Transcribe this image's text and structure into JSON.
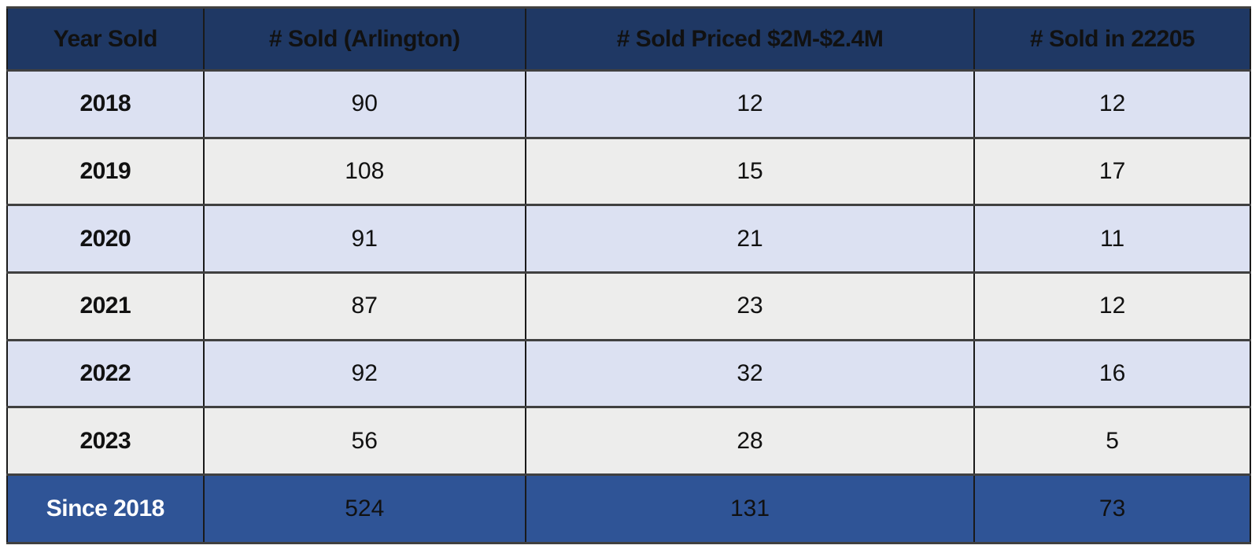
{
  "table": {
    "columns": [
      {
        "label": "Year Sold"
      },
      {
        "label": "# Sold (Arlington)"
      },
      {
        "label": "# Sold Priced $2M-$2.4M"
      },
      {
        "label": "# Sold in 22205"
      }
    ],
    "rows": [
      {
        "year": "2018",
        "sold_arlington": "90",
        "sold_2m_24m": "12",
        "sold_22205": "12"
      },
      {
        "year": "2019",
        "sold_arlington": "108",
        "sold_2m_24m": "15",
        "sold_22205": "17"
      },
      {
        "year": "2020",
        "sold_arlington": "91",
        "sold_2m_24m": "21",
        "sold_22205": "11"
      },
      {
        "year": "2021",
        "sold_arlington": "87",
        "sold_2m_24m": "23",
        "sold_22205": "12"
      },
      {
        "year": "2022",
        "sold_arlington": "92",
        "sold_2m_24m": "32",
        "sold_22205": "16"
      },
      {
        "year": "2023",
        "sold_arlington": "56",
        "sold_2m_24m": "28",
        "sold_22205": "5"
      }
    ],
    "totals": {
      "label": "Since 2018",
      "sold_arlington": "524",
      "sold_2m_24m": "131",
      "sold_22205": "73"
    }
  },
  "colors": {
    "header_bg": "#1F3864",
    "totals_bg": "#2F5496",
    "row_alt_lavender": "#DCE1F2",
    "row_alt_gray": "#EDEDEC",
    "grid_border": "#1a1a1a"
  }
}
